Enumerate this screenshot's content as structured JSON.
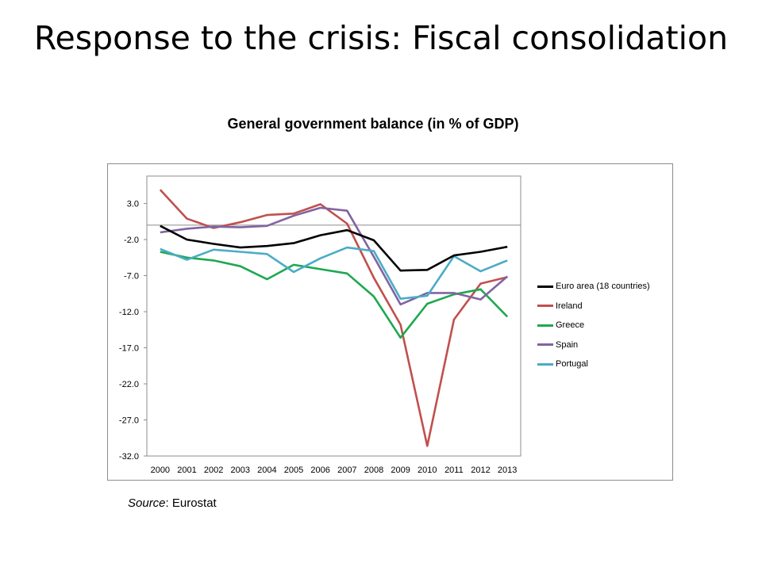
{
  "slide": {
    "title": "Response to the crisis: Fiscal consolidation"
  },
  "source": {
    "label": "Source",
    "text": ": Eurostat"
  },
  "chart_data": {
    "type": "line",
    "title": "General government balance (in % of GDP)",
    "xlabel": "",
    "ylabel": "",
    "categories": [
      "2000",
      "2001",
      "2002",
      "2003",
      "2004",
      "2005",
      "2006",
      "2007",
      "2008",
      "2009",
      "2010",
      "2011",
      "2012",
      "2013"
    ],
    "y_ticks": [
      "3.0",
      "-2.0",
      "-7.0",
      "-12.0",
      "-17.0",
      "-22.0",
      "-27.0",
      "-32.0"
    ],
    "ylim": [
      -32.0,
      6.8
    ],
    "grid": false,
    "zero_line": true,
    "legend_position": "right",
    "series": [
      {
        "name": "Euro area (18 countries)",
        "color": "#000000",
        "values": [
          -0.1,
          -2.0,
          -2.6,
          -3.1,
          -2.9,
          -2.5,
          -1.4,
          -0.7,
          -2.1,
          -6.3,
          -6.2,
          -4.2,
          -3.7,
          -3.0
        ]
      },
      {
        "name": "Ireland",
        "color": "#c0504d",
        "values": [
          4.9,
          0.9,
          -0.4,
          0.4,
          1.4,
          1.6,
          2.9,
          0.2,
          -7.3,
          -13.8,
          -30.6,
          -13.1,
          -8.1,
          -7.2
        ]
      },
      {
        "name": "Greece",
        "color": "#1ea850",
        "values": [
          -3.7,
          -4.5,
          -4.9,
          -5.7,
          -7.5,
          -5.5,
          -6.1,
          -6.7,
          -9.9,
          -15.6,
          -10.9,
          -9.6,
          -8.9,
          -12.7
        ]
      },
      {
        "name": "Spain",
        "color": "#8064a2",
        "values": [
          -1.0,
          -0.5,
          -0.2,
          -0.3,
          -0.1,
          1.3,
          2.4,
          2.0,
          -4.4,
          -11.0,
          -9.4,
          -9.4,
          -10.3,
          -7.1
        ]
      },
      {
        "name": "Portugal",
        "color": "#4bacc6",
        "values": [
          -3.3,
          -4.8,
          -3.4,
          -3.7,
          -4.0,
          -6.5,
          -4.6,
          -3.1,
          -3.6,
          -10.2,
          -9.8,
          -4.3,
          -6.4,
          -4.9
        ]
      }
    ]
  }
}
